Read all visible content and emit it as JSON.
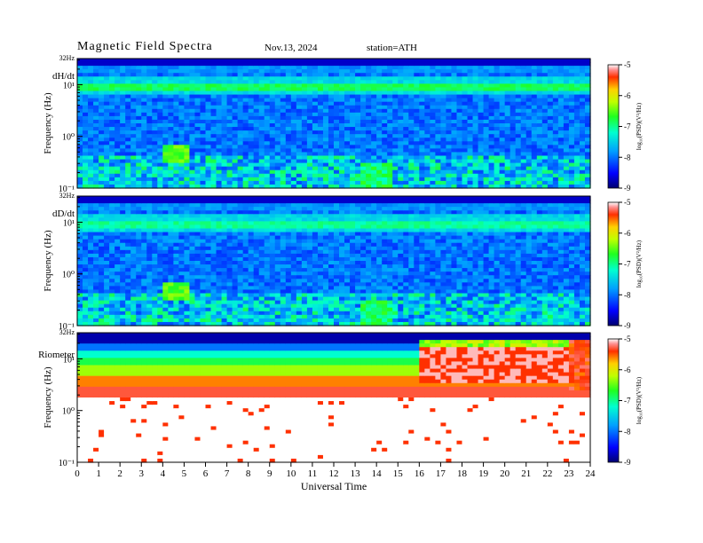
{
  "header": {
    "title": "Magnetic  Field  Spectra",
    "date": "Nov.13, 2024",
    "station": "station=ATH"
  },
  "chart_data": [
    {
      "type": "heatmap",
      "panel": "dH/dt",
      "top_label": "32Hz",
      "ylabel": "Frequency  (Hz)",
      "ytick_labels": [
        "10¹",
        "10⁰",
        "10⁻¹"
      ],
      "yscale": "log",
      "ylim_hz": [
        0.1,
        32
      ],
      "xlim_hours": [
        0,
        24
      ],
      "colorbar": {
        "label": "log₁₀(PSD)(V²/Hz)",
        "ticks": [
          "-5",
          "-6",
          "-7",
          "-8",
          "-9"
        ],
        "range": [
          -9,
          -5
        ]
      },
      "features": [
        {
          "type": "band",
          "freq_hz": 8,
          "level": -7.1
        },
        {
          "type": "line",
          "freq_hz": 1,
          "level": -7.8
        },
        {
          "type": "blob",
          "time_h": 4.7,
          "freq_hz": 0.45,
          "level": -6.6
        }
      ]
    },
    {
      "type": "heatmap",
      "panel": "dD/dt",
      "top_label": "32Hz",
      "ylabel": "Frequency  (Hz)",
      "ytick_labels": [
        "10¹",
        "10⁰",
        "10⁻¹"
      ],
      "yscale": "log",
      "ylim_hz": [
        0.1,
        32
      ],
      "xlim_hours": [
        0,
        24
      ],
      "colorbar": {
        "label": "log₁₀(PSD)(V²/Hz)",
        "ticks": [
          "-5",
          "-6",
          "-7",
          "-8",
          "-9"
        ],
        "range": [
          -9,
          -5
        ]
      },
      "features": [
        {
          "type": "band",
          "freq_hz": 8,
          "level": -7.3
        },
        {
          "type": "blob",
          "time_h": 4.7,
          "freq_hz": 0.45,
          "level": -6.6
        },
        {
          "type": "blob",
          "time_h": 14.0,
          "freq_hz": 0.15,
          "level": -7.0
        }
      ]
    },
    {
      "type": "heatmap",
      "panel": "Riometer",
      "top_label": "32Hz",
      "ylabel": "Frequency  (Hz)",
      "ytick_labels": [
        "10¹",
        "10⁰",
        "10⁻¹"
      ],
      "yscale": "log",
      "ylim_hz": [
        0.1,
        32
      ],
      "xlim_hours": [
        0,
        24
      ],
      "colorbar": {
        "label": "log₁₀(PSD)(V²/Hz)",
        "ticks": [
          "-5",
          "-6",
          "-7",
          "-8",
          "-9"
        ],
        "range": [
          -9,
          -5
        ]
      },
      "features": [
        {
          "type": "gradient",
          "description_levels": [
            -8.8,
            -7,
            -6,
            -5
          ]
        },
        {
          "type": "regime_change",
          "time_h": 16
        }
      ]
    }
  ],
  "xaxis": {
    "label": "Universal  Time",
    "ticks": [
      "0",
      "1",
      "2",
      "3",
      "4",
      "5",
      "6",
      "7",
      "8",
      "9",
      "10",
      "11",
      "12",
      "13",
      "14",
      "15",
      "16",
      "17",
      "18",
      "19",
      "20",
      "21",
      "22",
      "23",
      "24"
    ]
  }
}
